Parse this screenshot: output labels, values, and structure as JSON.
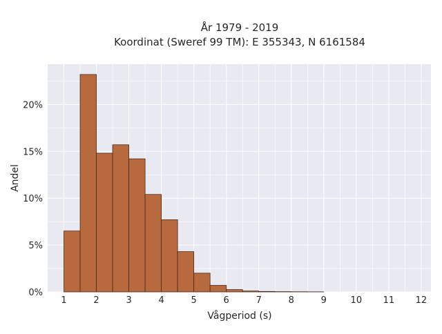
{
  "chart_data": {
    "type": "bar",
    "title": "År 1979 - 2019",
    "subtitle": "Koordinat (Sweref 99 TM): E 355343, N 6161584",
    "xlabel": "Vågperiod (s)",
    "ylabel": "Andel",
    "xlim": [
      0.5,
      12.3
    ],
    "ylim": [
      0,
      0.243
    ],
    "x_ticks": [
      "1",
      "2",
      "3",
      "4",
      "5",
      "6",
      "7",
      "8",
      "9",
      "10",
      "11",
      "12"
    ],
    "y_ticks": [
      "0%",
      "5%",
      "10%",
      "15%",
      "20%"
    ],
    "y_tick_values": [
      0,
      0.05,
      0.1,
      0.15,
      0.2
    ],
    "grid": true,
    "bin_width": 0.5,
    "bins": [
      {
        "x0": 1.0,
        "x1": 1.5,
        "value": 0.065
      },
      {
        "x0": 1.5,
        "x1": 2.0,
        "value": 0.232
      },
      {
        "x0": 2.0,
        "x1": 2.5,
        "value": 0.148
      },
      {
        "x0": 2.5,
        "x1": 3.0,
        "value": 0.157
      },
      {
        "x0": 3.0,
        "x1": 3.5,
        "value": 0.142
      },
      {
        "x0": 3.5,
        "x1": 4.0,
        "value": 0.104
      },
      {
        "x0": 4.0,
        "x1": 4.5,
        "value": 0.077
      },
      {
        "x0": 4.5,
        "x1": 5.0,
        "value": 0.043
      },
      {
        "x0": 5.0,
        "x1": 5.5,
        "value": 0.02
      },
      {
        "x0": 5.5,
        "x1": 6.0,
        "value": 0.007
      },
      {
        "x0": 6.0,
        "x1": 6.5,
        "value": 0.0025
      },
      {
        "x0": 6.5,
        "x1": 7.0,
        "value": 0.001
      },
      {
        "x0": 7.0,
        "x1": 7.5,
        "value": 0.0005
      },
      {
        "x0": 7.5,
        "x1": 8.0,
        "value": 0.0003
      },
      {
        "x0": 8.0,
        "x1": 8.5,
        "value": 0.0002
      },
      {
        "x0": 8.5,
        "x1": 9.0,
        "value": 0.0001
      }
    ],
    "colors": {
      "bar_fill": "#b86a3f",
      "bar_edge": "#4a2a18",
      "plot_background": "#e9e9f1",
      "grid": "#ffffff"
    }
  }
}
